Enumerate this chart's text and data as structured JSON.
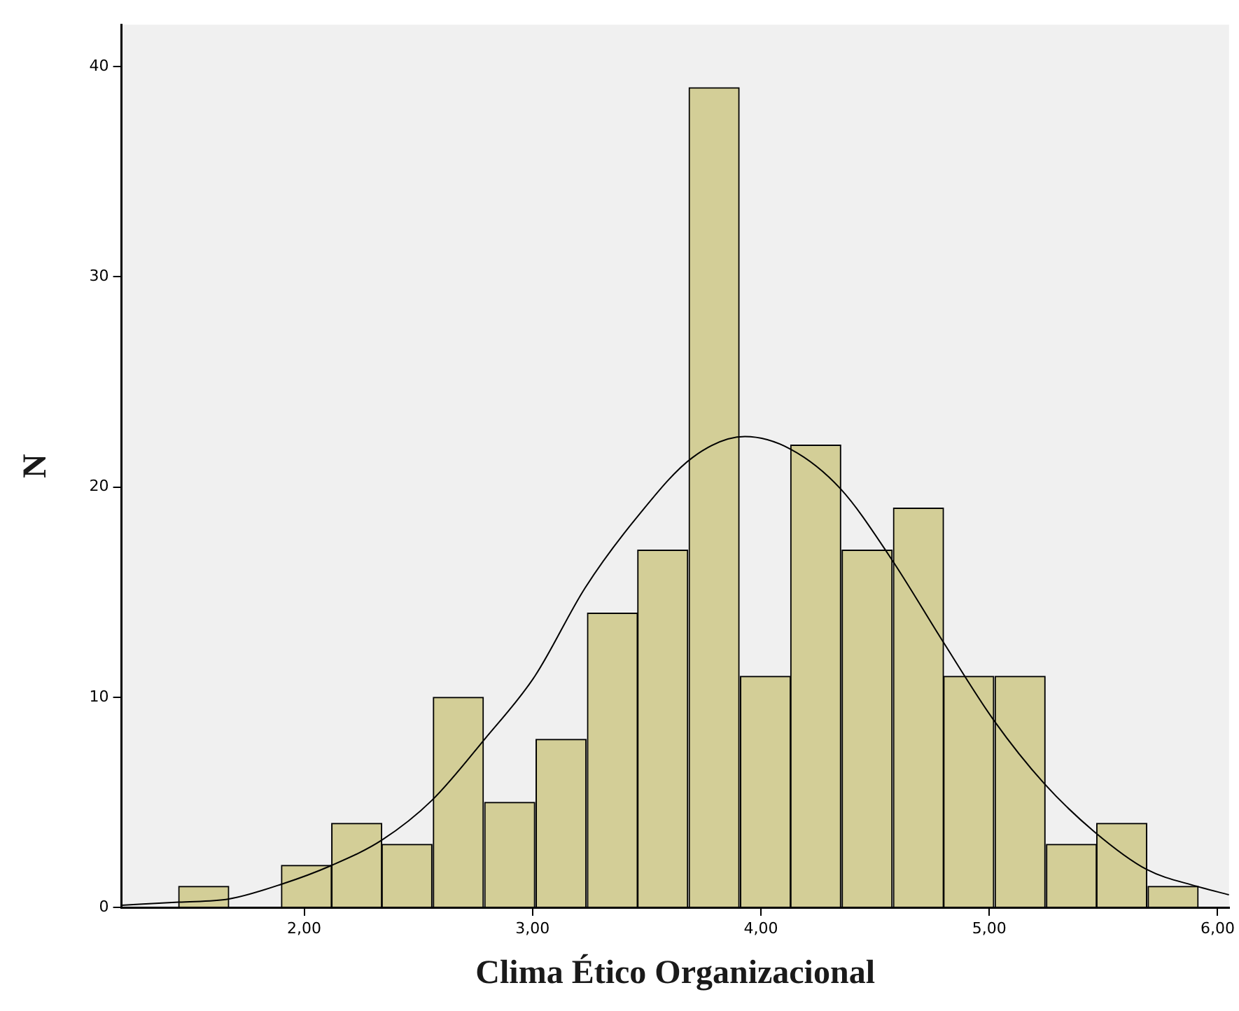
{
  "chart_data": {
    "type": "histogram",
    "xlabel": "Clima Ético Organizacional",
    "ylabel": "N",
    "bins": [
      1.45,
      1.67,
      1.9,
      2.12,
      2.34,
      2.56,
      2.79,
      3.01,
      3.24,
      3.46,
      3.68,
      3.91,
      4.13,
      4.35,
      4.58,
      4.8,
      5.02,
      5.25,
      5.47,
      5.69,
      5.92
    ],
    "values": [
      1,
      0,
      2,
      4,
      3,
      10,
      5,
      8,
      14,
      17,
      39,
      11,
      22,
      17,
      19,
      11,
      11,
      3,
      4,
      1
    ],
    "color": "#d3ce97",
    "series": [
      {
        "type": "line",
        "color": "#000000",
        "x": [
          1.2,
          1.45,
          1.67,
          1.9,
          2.12,
          2.34,
          2.56,
          2.79,
          3.01,
          3.23,
          3.46,
          3.7,
          3.93,
          4.13,
          4.35,
          4.57,
          4.8,
          5.02,
          5.24,
          5.46,
          5.69,
          5.91,
          6.05
        ],
        "values": [
          0.1,
          0.25,
          0.4,
          1.1,
          2,
          3.2,
          5.1,
          8,
          11,
          15.2,
          18.6,
          21.4,
          22.4,
          21.8,
          19.9,
          16.6,
          12.6,
          8.9,
          5.9,
          3.6,
          1.8,
          1,
          0.6
        ]
      }
    ],
    "xlim": [
      1.2,
      6.05
    ],
    "xticks": [
      {
        "value": 2,
        "label": "2,00"
      },
      {
        "value": 3,
        "label": "3,00"
      },
      {
        "value": 4,
        "label": "4,00"
      },
      {
        "value": 5,
        "label": "5,00"
      },
      {
        "value": 6,
        "label": "6,00"
      }
    ],
    "ylim": [
      0,
      42
    ],
    "yticks": [
      0,
      10,
      20,
      30,
      40
    ],
    "grid": false,
    "legend": false
  }
}
